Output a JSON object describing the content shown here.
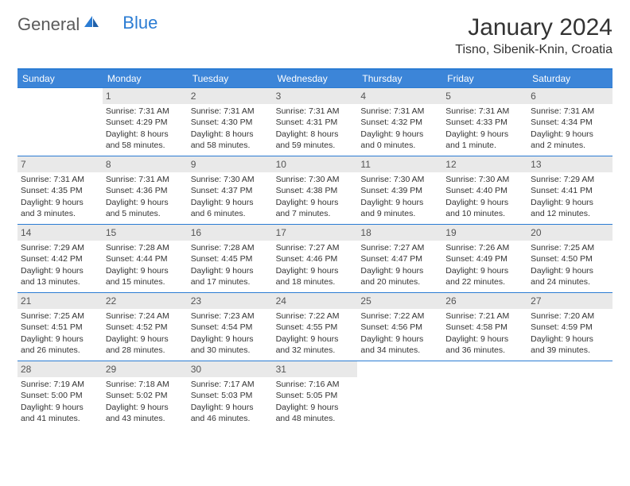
{
  "logo": {
    "word1": "General",
    "word2": "Blue"
  },
  "title": "January 2024",
  "location": "Tisno, Sibenik-Knin, Croatia",
  "colors": {
    "header_bg": "#3c85d8",
    "border": "#2b7cd3",
    "daynum_bg": "#e9e9e9",
    "text": "#333333",
    "logo_gray": "#5a5a5a",
    "logo_blue": "#2b7cd3"
  },
  "day_names": [
    "Sunday",
    "Monday",
    "Tuesday",
    "Wednesday",
    "Thursday",
    "Friday",
    "Saturday"
  ],
  "leading_blanks": 1,
  "days": [
    {
      "n": 1,
      "sunrise": "7:31 AM",
      "sunset": "4:29 PM",
      "daylight": "8 hours and 58 minutes."
    },
    {
      "n": 2,
      "sunrise": "7:31 AM",
      "sunset": "4:30 PM",
      "daylight": "8 hours and 58 minutes."
    },
    {
      "n": 3,
      "sunrise": "7:31 AM",
      "sunset": "4:31 PM",
      "daylight": "8 hours and 59 minutes."
    },
    {
      "n": 4,
      "sunrise": "7:31 AM",
      "sunset": "4:32 PM",
      "daylight": "9 hours and 0 minutes."
    },
    {
      "n": 5,
      "sunrise": "7:31 AM",
      "sunset": "4:33 PM",
      "daylight": "9 hours and 1 minute."
    },
    {
      "n": 6,
      "sunrise": "7:31 AM",
      "sunset": "4:34 PM",
      "daylight": "9 hours and 2 minutes."
    },
    {
      "n": 7,
      "sunrise": "7:31 AM",
      "sunset": "4:35 PM",
      "daylight": "9 hours and 3 minutes."
    },
    {
      "n": 8,
      "sunrise": "7:31 AM",
      "sunset": "4:36 PM",
      "daylight": "9 hours and 5 minutes."
    },
    {
      "n": 9,
      "sunrise": "7:30 AM",
      "sunset": "4:37 PM",
      "daylight": "9 hours and 6 minutes."
    },
    {
      "n": 10,
      "sunrise": "7:30 AM",
      "sunset": "4:38 PM",
      "daylight": "9 hours and 7 minutes."
    },
    {
      "n": 11,
      "sunrise": "7:30 AM",
      "sunset": "4:39 PM",
      "daylight": "9 hours and 9 minutes."
    },
    {
      "n": 12,
      "sunrise": "7:30 AM",
      "sunset": "4:40 PM",
      "daylight": "9 hours and 10 minutes."
    },
    {
      "n": 13,
      "sunrise": "7:29 AM",
      "sunset": "4:41 PM",
      "daylight": "9 hours and 12 minutes."
    },
    {
      "n": 14,
      "sunrise": "7:29 AM",
      "sunset": "4:42 PM",
      "daylight": "9 hours and 13 minutes."
    },
    {
      "n": 15,
      "sunrise": "7:28 AM",
      "sunset": "4:44 PM",
      "daylight": "9 hours and 15 minutes."
    },
    {
      "n": 16,
      "sunrise": "7:28 AM",
      "sunset": "4:45 PM",
      "daylight": "9 hours and 17 minutes."
    },
    {
      "n": 17,
      "sunrise": "7:27 AM",
      "sunset": "4:46 PM",
      "daylight": "9 hours and 18 minutes."
    },
    {
      "n": 18,
      "sunrise": "7:27 AM",
      "sunset": "4:47 PM",
      "daylight": "9 hours and 20 minutes."
    },
    {
      "n": 19,
      "sunrise": "7:26 AM",
      "sunset": "4:49 PM",
      "daylight": "9 hours and 22 minutes."
    },
    {
      "n": 20,
      "sunrise": "7:25 AM",
      "sunset": "4:50 PM",
      "daylight": "9 hours and 24 minutes."
    },
    {
      "n": 21,
      "sunrise": "7:25 AM",
      "sunset": "4:51 PM",
      "daylight": "9 hours and 26 minutes."
    },
    {
      "n": 22,
      "sunrise": "7:24 AM",
      "sunset": "4:52 PM",
      "daylight": "9 hours and 28 minutes."
    },
    {
      "n": 23,
      "sunrise": "7:23 AM",
      "sunset": "4:54 PM",
      "daylight": "9 hours and 30 minutes."
    },
    {
      "n": 24,
      "sunrise": "7:22 AM",
      "sunset": "4:55 PM",
      "daylight": "9 hours and 32 minutes."
    },
    {
      "n": 25,
      "sunrise": "7:22 AM",
      "sunset": "4:56 PM",
      "daylight": "9 hours and 34 minutes."
    },
    {
      "n": 26,
      "sunrise": "7:21 AM",
      "sunset": "4:58 PM",
      "daylight": "9 hours and 36 minutes."
    },
    {
      "n": 27,
      "sunrise": "7:20 AM",
      "sunset": "4:59 PM",
      "daylight": "9 hours and 39 minutes."
    },
    {
      "n": 28,
      "sunrise": "7:19 AM",
      "sunset": "5:00 PM",
      "daylight": "9 hours and 41 minutes."
    },
    {
      "n": 29,
      "sunrise": "7:18 AM",
      "sunset": "5:02 PM",
      "daylight": "9 hours and 43 minutes."
    },
    {
      "n": 30,
      "sunrise": "7:17 AM",
      "sunset": "5:03 PM",
      "daylight": "9 hours and 46 minutes."
    },
    {
      "n": 31,
      "sunrise": "7:16 AM",
      "sunset": "5:05 PM",
      "daylight": "9 hours and 48 minutes."
    }
  ],
  "labels": {
    "sunrise": "Sunrise:",
    "sunset": "Sunset:",
    "daylight": "Daylight:"
  }
}
